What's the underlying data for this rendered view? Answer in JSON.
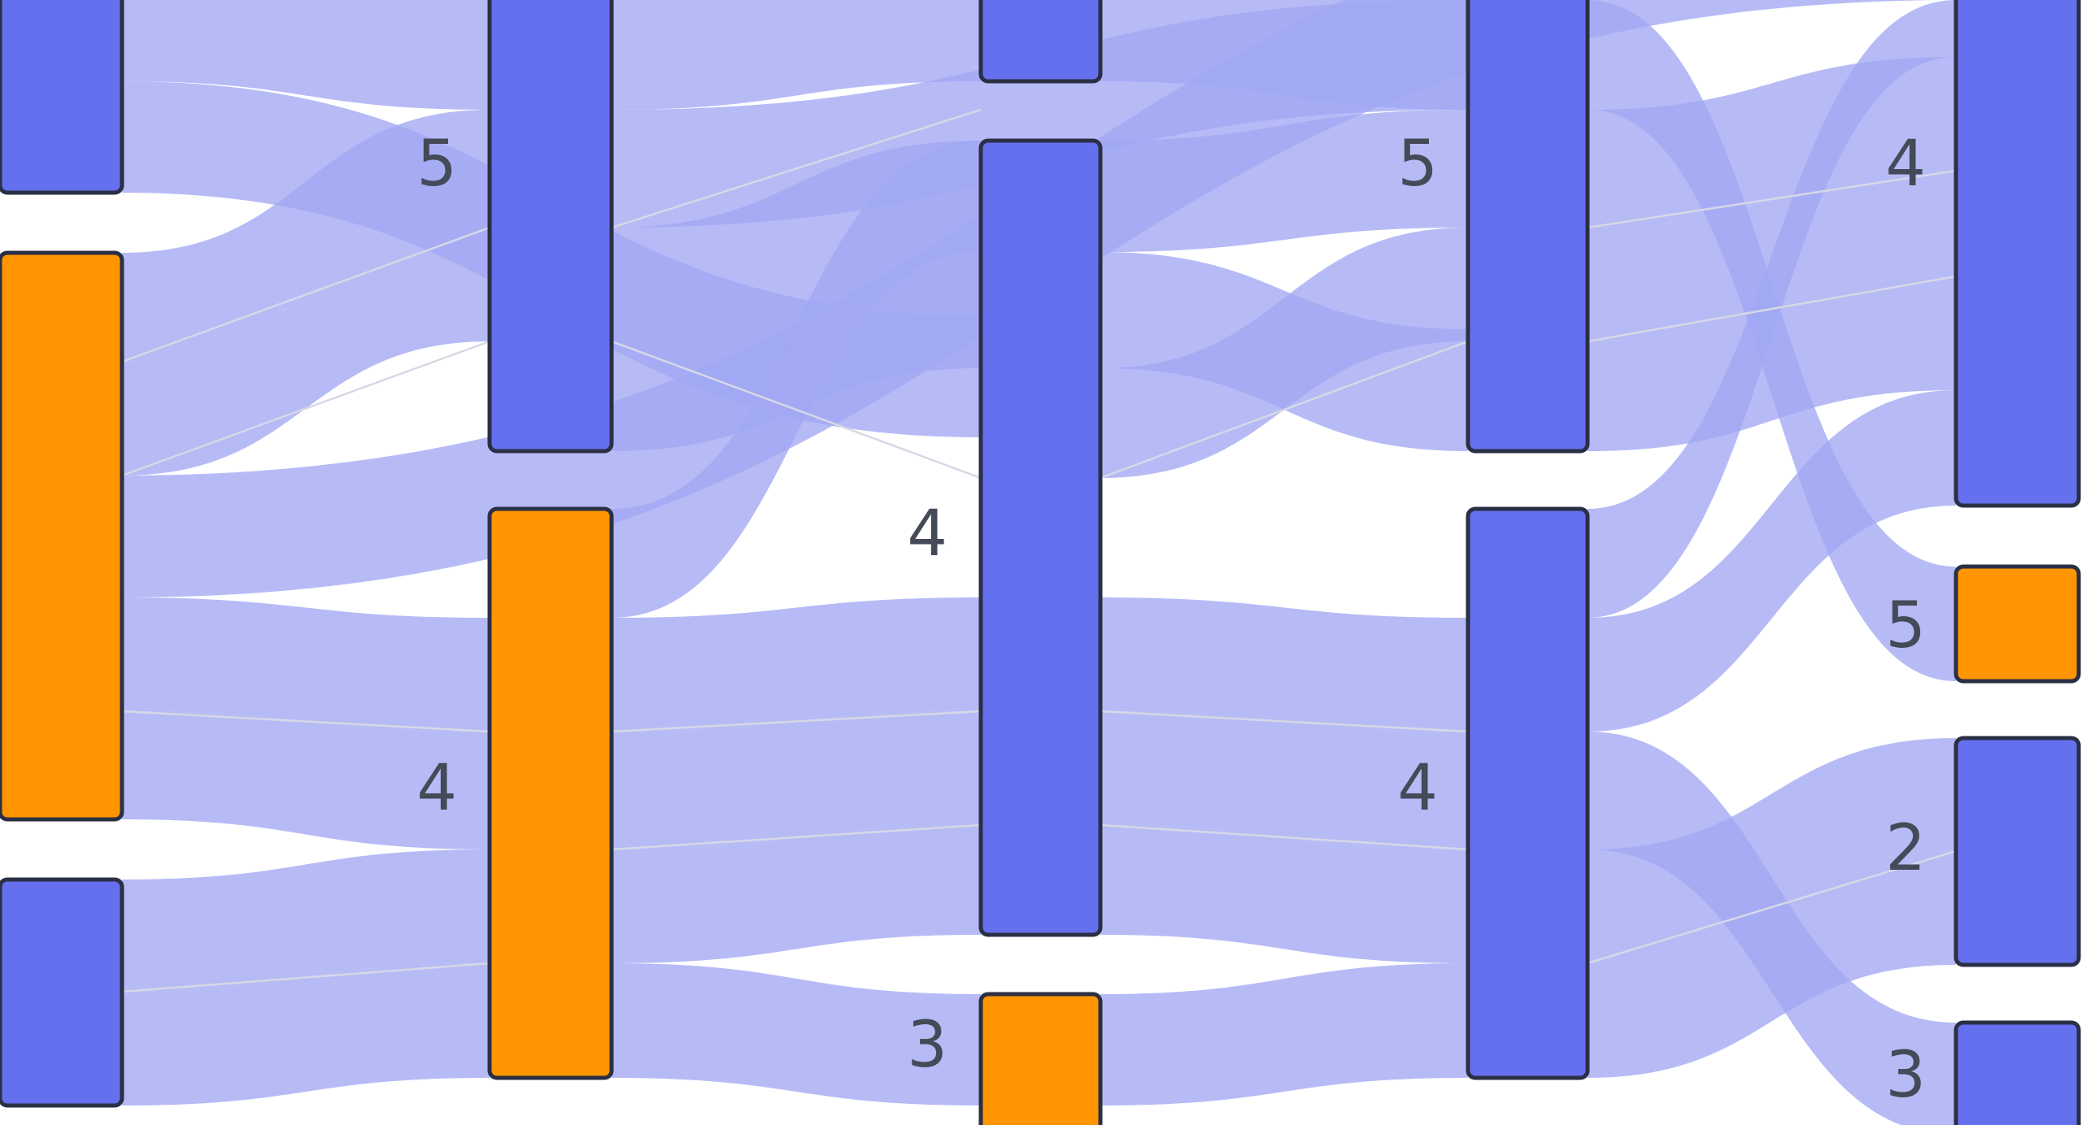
{
  "colors": {
    "node_default": "#6570ee",
    "node_highlight": "#ff9500",
    "link": "#a2a8f4",
    "link_divider": "#d7d8e6",
    "label": "#444a57"
  },
  "columns": [
    {
      "nodes": [
        {
          "label": "",
          "highlight": false
        },
        {
          "label": "",
          "highlight": true
        },
        {
          "label": "",
          "highlight": false
        }
      ]
    },
    {
      "nodes": [
        {
          "label": "5",
          "highlight": false
        },
        {
          "label": "4",
          "highlight": true
        }
      ]
    },
    {
      "nodes": [
        {
          "label": "",
          "highlight": false
        },
        {
          "label": "4",
          "highlight": false
        },
        {
          "label": "3",
          "highlight": true
        }
      ]
    },
    {
      "nodes": [
        {
          "label": "5",
          "highlight": false
        },
        {
          "label": "4",
          "highlight": false
        }
      ]
    },
    {
      "nodes": [
        {
          "label": "4",
          "highlight": false
        },
        {
          "label": "5",
          "highlight": true
        },
        {
          "label": "2",
          "highlight": false
        },
        {
          "label": "3",
          "highlight": false
        }
      ]
    }
  ]
}
